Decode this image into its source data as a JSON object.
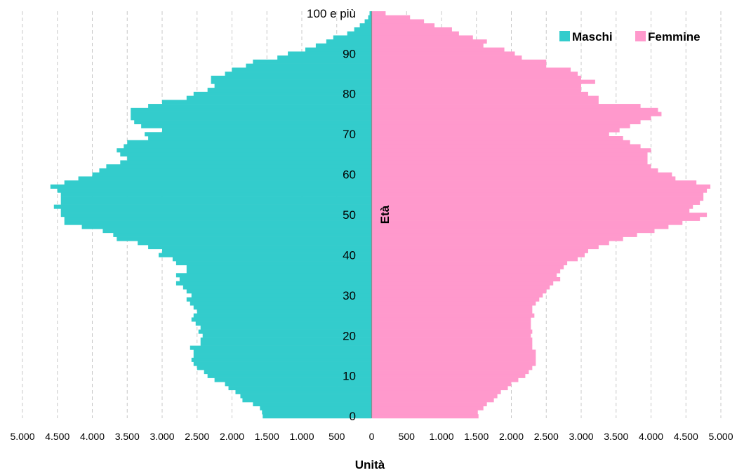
{
  "chart_data": {
    "type": "bar",
    "orientation": "horizontal",
    "layout": "population-pyramid",
    "xlabel": "Unità",
    "ylabel": "Età",
    "xlim": [
      -5000,
      5000
    ],
    "x_ticks": [
      "5.000",
      "4.500",
      "4.000",
      "3.500",
      "3.000",
      "2.500",
      "2.000",
      "1.500",
      "1.000",
      "500",
      "0",
      "500",
      "1.000",
      "1.500",
      "2.000",
      "2.500",
      "3.000",
      "3.500",
      "4.000",
      "4.500",
      "5.000"
    ],
    "y_ticks": [
      "0",
      "10",
      "20",
      "30",
      "40",
      "50",
      "60",
      "70",
      "80",
      "90",
      "100 e più"
    ],
    "grid": "vertical dashed",
    "legend": "top-right",
    "categories": [
      "0",
      "1",
      "2",
      "3",
      "4",
      "5",
      "6",
      "7",
      "8",
      "9",
      "10",
      "11",
      "12",
      "13",
      "14",
      "15",
      "16",
      "17",
      "18",
      "19",
      "20",
      "21",
      "22",
      "23",
      "24",
      "25",
      "26",
      "27",
      "28",
      "29",
      "30",
      "31",
      "32",
      "33",
      "34",
      "35",
      "36",
      "37",
      "38",
      "39",
      "40",
      "41",
      "42",
      "43",
      "44",
      "45",
      "46",
      "47",
      "48",
      "49",
      "50",
      "51",
      "52",
      "53",
      "54",
      "55",
      "56",
      "57",
      "58",
      "59",
      "60",
      "61",
      "62",
      "63",
      "64",
      "65",
      "66",
      "67",
      "68",
      "69",
      "70",
      "71",
      "72",
      "73",
      "74",
      "75",
      "76",
      "77",
      "78",
      "79",
      "80",
      "81",
      "82",
      "83",
      "84",
      "85",
      "86",
      "87",
      "88",
      "89",
      "90",
      "91",
      "92",
      "93",
      "94",
      "95",
      "96",
      "97",
      "98",
      "99",
      "100 e più"
    ],
    "series": [
      {
        "name": "Maschi",
        "color": "#33CCCC",
        "values": [
          1560,
          1570,
          1600,
          1700,
          1850,
          1880,
          1950,
          2050,
          2100,
          2250,
          2350,
          2400,
          2500,
          2550,
          2580,
          2550,
          2550,
          2600,
          2450,
          2450,
          2420,
          2480,
          2450,
          2520,
          2580,
          2550,
          2500,
          2550,
          2600,
          2650,
          2580,
          2650,
          2700,
          2800,
          2750,
          2800,
          2650,
          2650,
          2800,
          2850,
          3050,
          3000,
          3200,
          3350,
          3650,
          3700,
          3850,
          4150,
          4400,
          4400,
          4450,
          4450,
          4550,
          4450,
          4450,
          4450,
          4500,
          4600,
          4400,
          4200,
          4000,
          3900,
          3800,
          3600,
          3500,
          3600,
          3650,
          3550,
          3500,
          3200,
          3250,
          3000,
          3300,
          3400,
          3450,
          3450,
          3450,
          3200,
          3000,
          2650,
          2550,
          2350,
          2250,
          2300,
          2300,
          2100,
          2000,
          1800,
          1700,
          1350,
          1200,
          950,
          800,
          650,
          550,
          350,
          250,
          170,
          100,
          50,
          30
        ]
      },
      {
        "name": "Femmine",
        "color": "#FF99CC",
        "values": [
          1530,
          1520,
          1600,
          1650,
          1750,
          1800,
          1850,
          1950,
          2000,
          2100,
          2200,
          2250,
          2300,
          2350,
          2350,
          2350,
          2350,
          2300,
          2300,
          2300,
          2280,
          2300,
          2280,
          2280,
          2280,
          2330,
          2300,
          2300,
          2350,
          2400,
          2450,
          2500,
          2550,
          2600,
          2700,
          2650,
          2700,
          2750,
          2800,
          2950,
          3050,
          3100,
          3250,
          3400,
          3600,
          3800,
          4050,
          4250,
          4450,
          4700,
          4800,
          4550,
          4600,
          4700,
          4750,
          4750,
          4800,
          4850,
          4650,
          4350,
          4300,
          4100,
          4000,
          3950,
          3950,
          3950,
          4000,
          3850,
          3700,
          3600,
          3400,
          3550,
          3700,
          3850,
          4000,
          4150,
          4100,
          3850,
          3250,
          3250,
          3100,
          3000,
          3000,
          3200,
          3000,
          2950,
          2850,
          2500,
          2500,
          2150,
          2050,
          1900,
          1600,
          1650,
          1450,
          1250,
          1150,
          900,
          750,
          550,
          200
        ]
      }
    ]
  }
}
